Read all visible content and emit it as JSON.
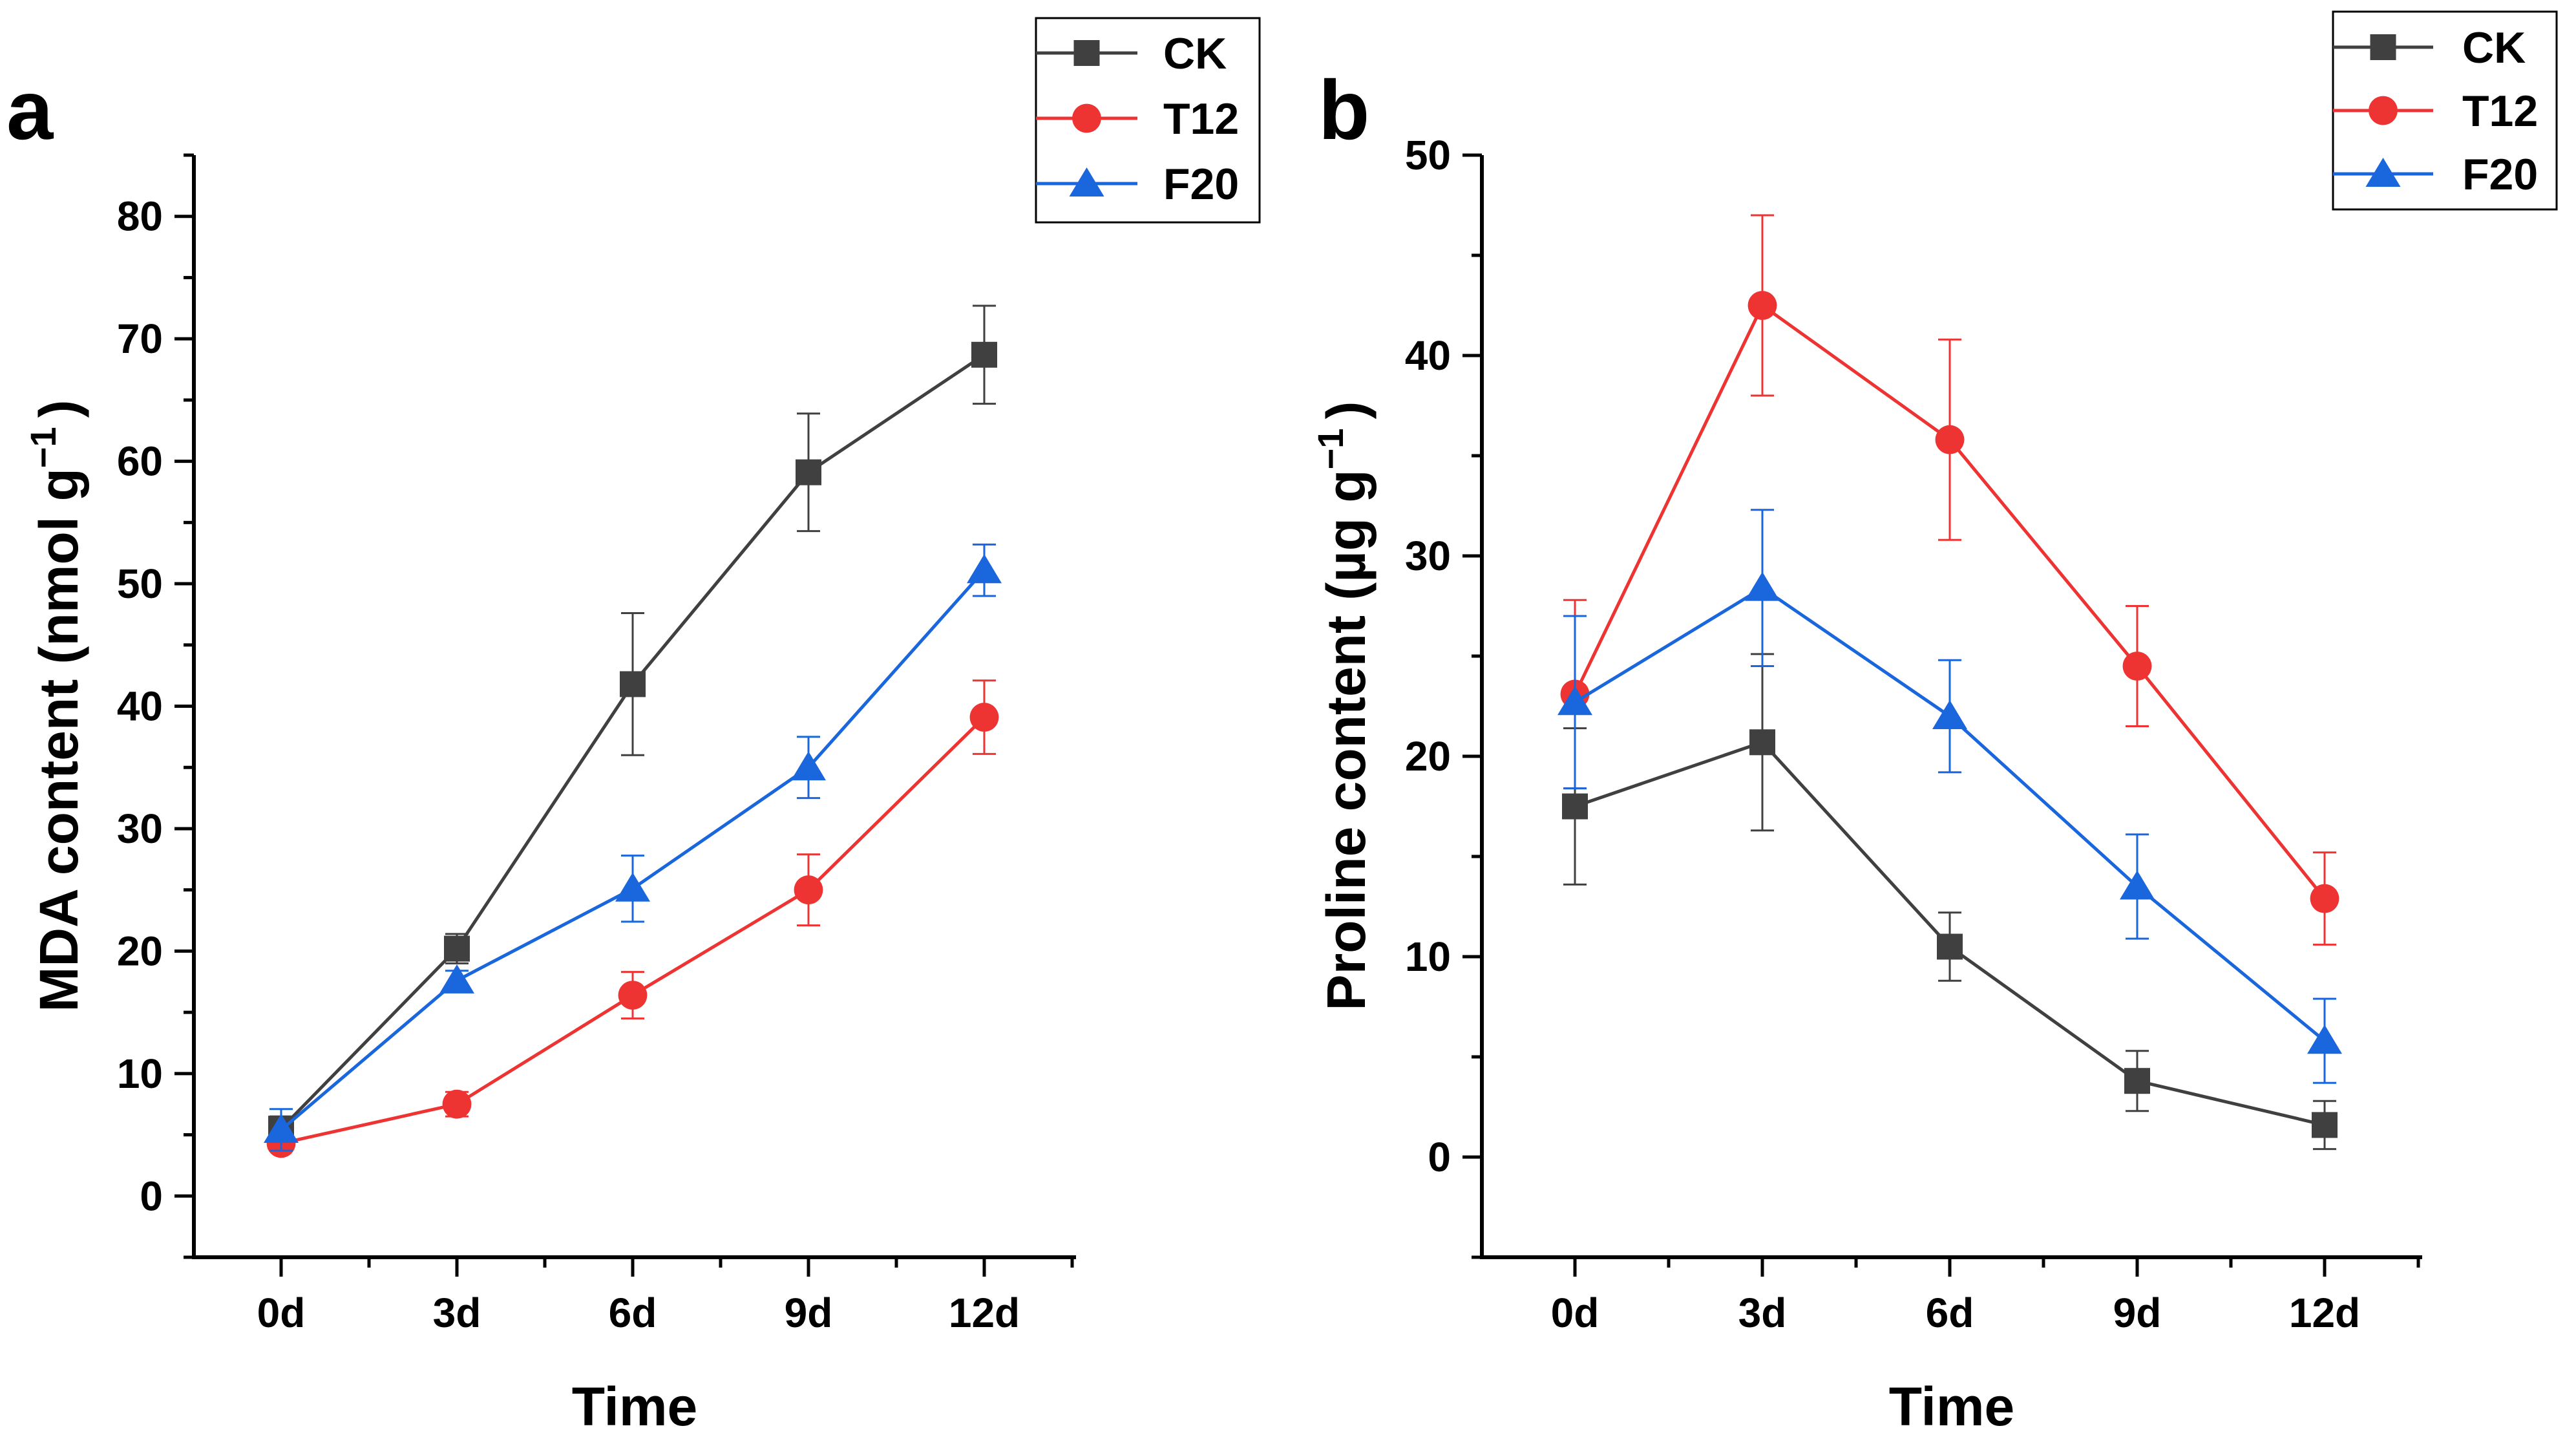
{
  "figure": {
    "colors": {
      "CK": "#404040",
      "T12": "#ee3333",
      "F20": "#1a66dd"
    }
  },
  "chart_data": [
    {
      "panel": "a",
      "type": "line",
      "xlabel": "Time",
      "ylabel": "MDA content (nmol g",
      "ylabel_sup": "−1",
      "ylabel_close": ")",
      "categories": [
        "0d",
        "3d",
        "6d",
        "9d",
        "12d"
      ],
      "ylim": [
        -5,
        85
      ],
      "yticks": [
        0,
        10,
        20,
        30,
        40,
        50,
        60,
        70,
        80
      ],
      "yticks_label": [
        "0",
        "10",
        "20",
        "30",
        "40",
        "50",
        "60",
        "70",
        "80"
      ],
      "legend_position": "top-right",
      "series": [
        {
          "name": "CK",
          "marker": "square",
          "color": "#404040",
          "values": [
            5.5,
            20.2,
            41.8,
            59.1,
            68.7
          ],
          "errors": [
            1.0,
            1.2,
            5.8,
            4.8,
            4.0
          ]
        },
        {
          "name": "T12",
          "marker": "circle",
          "color": "#ee3333",
          "values": [
            4.3,
            7.5,
            16.4,
            25.0,
            39.1
          ],
          "errors": [
            0.5,
            1.0,
            1.9,
            2.9,
            3.0
          ]
        },
        {
          "name": "F20",
          "marker": "triangle",
          "color": "#1a66dd",
          "values": [
            5.4,
            17.6,
            25.1,
            35.0,
            51.1
          ],
          "errors": [
            1.7,
            0.8,
            2.7,
            2.5,
            2.1
          ]
        }
      ]
    },
    {
      "panel": "b",
      "type": "line",
      "xlabel": "Time",
      "ylabel": "Proline content (µg g",
      "ylabel_sup": "−1",
      "ylabel_close": ")",
      "categories": [
        "0d",
        "3d",
        "6d",
        "9d",
        "12d"
      ],
      "ylim": [
        -5,
        50
      ],
      "yticks": [
        0,
        10,
        20,
        30,
        40,
        50
      ],
      "yticks_label": [
        "0",
        "10",
        "20",
        "30",
        "40",
        "50"
      ],
      "legend_position": "top-right",
      "series": [
        {
          "name": "CK",
          "marker": "square",
          "color": "#404040",
          "values": [
            17.5,
            20.7,
            10.5,
            3.8,
            1.6
          ],
          "errors": [
            3.9,
            4.4,
            1.7,
            1.5,
            1.2
          ]
        },
        {
          "name": "T12",
          "marker": "circle",
          "color": "#ee3333",
          "values": [
            23.1,
            42.5,
            35.8,
            24.5,
            12.9
          ],
          "errors": [
            4.7,
            4.5,
            5.0,
            3.0,
            2.3
          ]
        },
        {
          "name": "F20",
          "marker": "triangle",
          "color": "#1a66dd",
          "values": [
            22.7,
            28.4,
            22.0,
            13.5,
            5.8
          ],
          "errors": [
            4.3,
            3.9,
            2.8,
            2.6,
            2.1
          ]
        }
      ]
    }
  ]
}
